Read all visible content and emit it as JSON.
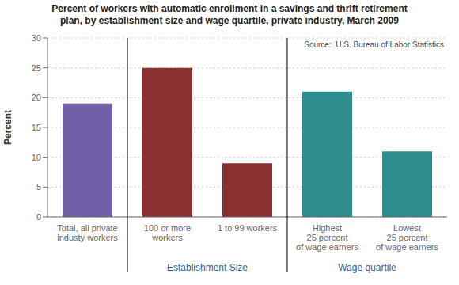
{
  "chart_data": {
    "type": "bar",
    "title": "Percent of workers with automatic enrollment in a savings and thrift retirement\nplan, by establishment size and wage quartile, private industry, March 2009",
    "ylabel": "Percent",
    "annotations": [
      "Source:  U.S. Bureau of Labor Statistics"
    ],
    "group_labels": [
      "Establishment Size",
      "Wage quartile"
    ],
    "categories": [
      "Total, all private\nindusty workers",
      "100 or more\nworkers",
      "1 to 99 workers",
      "Highest\n25 percent\nof wage earners",
      "Lowest\n25 percent\nof wage earners"
    ],
    "values": [
      19.0,
      25.0,
      9.0,
      21.0,
      11.0
    ],
    "colors": [
      "#7060A8",
      "#8B3030",
      "#8B3030",
      "#2E8E8E",
      "#2E8E8E"
    ],
    "ylim": [
      0,
      30
    ],
    "yticks": [
      0,
      5,
      10,
      15,
      20,
      25,
      30
    ],
    "grid": true
  }
}
